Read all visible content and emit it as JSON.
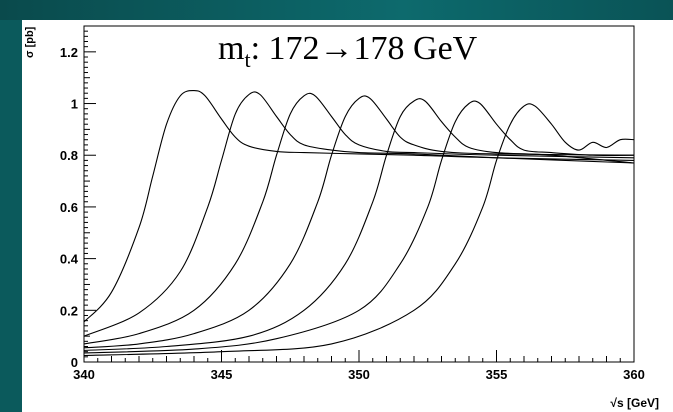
{
  "slide": {
    "background": "#0b5a5c"
  },
  "chart_data": {
    "type": "line",
    "annotation": {
      "prefix": "m",
      "subscript": "t",
      "text": ": 172→178 GeV"
    },
    "xlabel": "√s [GeV]",
    "ylabel": "σ [pb]",
    "xlim": [
      340,
      360
    ],
    "ylim": [
      0,
      1.3
    ],
    "xticks": [
      340,
      345,
      350,
      355,
      360
    ],
    "yticks": [
      0,
      0.2,
      0.4,
      0.6,
      0.8,
      1.0,
      1.2
    ],
    "xticklabels": [
      "340",
      "345",
      "350",
      "355",
      "360"
    ],
    "yticklabels": [
      "0",
      "0.2",
      "0.4",
      "0.6",
      "0.8",
      "1",
      "1.2"
    ],
    "series": [
      {
        "x": [
          340,
          341,
          342,
          342.5,
          343,
          343.5,
          344,
          344.4,
          345,
          345.5,
          346,
          347,
          348,
          350,
          352,
          355,
          360
        ],
        "y": [
          0.155,
          0.27,
          0.52,
          0.72,
          0.92,
          1.03,
          1.05,
          1.03,
          0.94,
          0.87,
          0.835,
          0.815,
          0.81,
          0.805,
          0.8,
          0.79,
          0.78
        ]
      },
      {
        "x": [
          340,
          342,
          343.5,
          344.5,
          345,
          345.5,
          346,
          346.4,
          347,
          347.5,
          348,
          349,
          350,
          352,
          355,
          360
        ],
        "y": [
          0.1,
          0.19,
          0.35,
          0.6,
          0.78,
          0.96,
          1.035,
          1.035,
          0.95,
          0.88,
          0.84,
          0.82,
          0.81,
          0.805,
          0.79,
          0.77
        ]
      },
      {
        "x": [
          340,
          342,
          344,
          345.5,
          346.5,
          347,
          347.5,
          348,
          348.4,
          349,
          349.5,
          350,
          351,
          352,
          355,
          360
        ],
        "y": [
          0.07,
          0.11,
          0.2,
          0.38,
          0.62,
          0.8,
          0.96,
          1.03,
          1.03,
          0.95,
          0.88,
          0.84,
          0.815,
          0.81,
          0.8,
          0.79
        ]
      },
      {
        "x": [
          340,
          342,
          344,
          346,
          347.5,
          348.5,
          349,
          349.5,
          350,
          350.4,
          351,
          351.5,
          352,
          353,
          355,
          360
        ],
        "y": [
          0.055,
          0.07,
          0.11,
          0.2,
          0.38,
          0.62,
          0.8,
          0.95,
          1.02,
          1.02,
          0.94,
          0.87,
          0.84,
          0.815,
          0.805,
          0.8
        ]
      },
      {
        "x": [
          340,
          343,
          346,
          348,
          349.5,
          350.5,
          351,
          351.5,
          352,
          352.4,
          353,
          353.5,
          354,
          355,
          357,
          360
        ],
        "y": [
          0.045,
          0.06,
          0.1,
          0.2,
          0.38,
          0.62,
          0.8,
          0.95,
          1.01,
          1.01,
          0.93,
          0.87,
          0.83,
          0.81,
          0.8,
          0.77
        ]
      },
      {
        "x": [
          340,
          344,
          347,
          350,
          351.5,
          352.5,
          353,
          353.5,
          354,
          354.4,
          355,
          355.5,
          356,
          357,
          358.5,
          360
        ],
        "y": [
          0.035,
          0.05,
          0.09,
          0.2,
          0.38,
          0.6,
          0.78,
          0.93,
          1.0,
          1.0,
          0.92,
          0.86,
          0.82,
          0.81,
          0.8,
          0.8
        ]
      },
      {
        "x": [
          340,
          345,
          349,
          352,
          353.5,
          354.5,
          355,
          355.5,
          356,
          356.4,
          357,
          357.5,
          358,
          358.5,
          359,
          359.5,
          360
        ],
        "y": [
          0.025,
          0.04,
          0.07,
          0.2,
          0.38,
          0.6,
          0.78,
          0.92,
          0.99,
          0.99,
          0.92,
          0.85,
          0.82,
          0.85,
          0.83,
          0.86,
          0.86
        ]
      }
    ]
  }
}
